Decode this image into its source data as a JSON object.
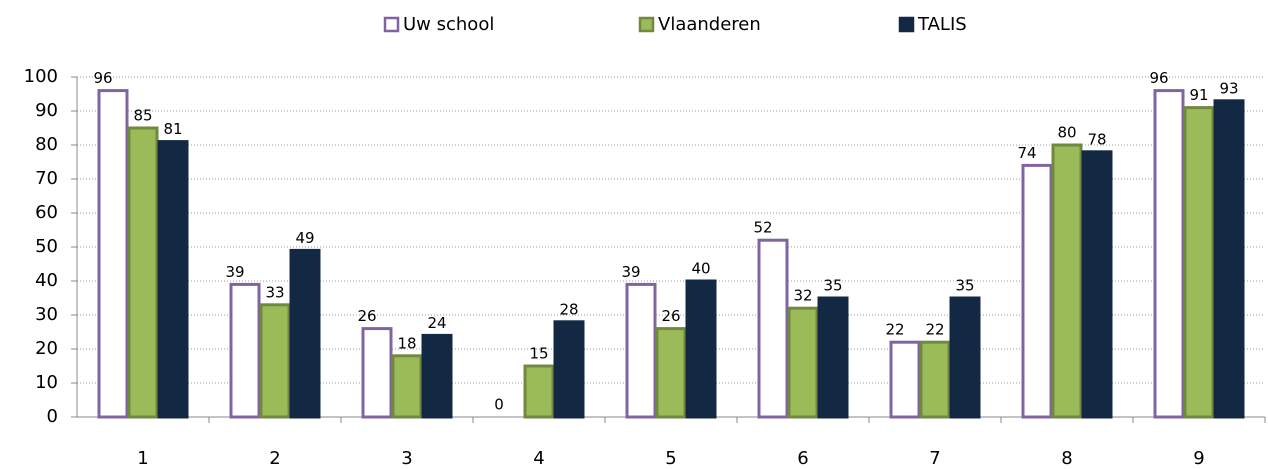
{
  "chart_data": {
    "type": "bar",
    "categories": [
      "1",
      "2",
      "3",
      "4",
      "5",
      "6",
      "7",
      "8",
      "9"
    ],
    "series": [
      {
        "name": "Uw school",
        "color": "#ffffff",
        "stroke": "#8064a2",
        "values": [
          96,
          39,
          26,
          0,
          39,
          52,
          22,
          74,
          96
        ]
      },
      {
        "name": "Vlaanderen",
        "color": "#9bbb59",
        "stroke": "#71893f",
        "values": [
          85,
          33,
          18,
          15,
          26,
          32,
          22,
          80,
          91
        ]
      },
      {
        "name": "TALIS",
        "color": "#132843",
        "stroke": "#132843",
        "values": [
          81,
          49,
          24,
          28,
          40,
          35,
          35,
          78,
          93
        ]
      }
    ],
    "ylim": [
      0,
      100
    ],
    "yticks": [
      0,
      10,
      20,
      30,
      40,
      50,
      60,
      70,
      80,
      90,
      100
    ],
    "grid": true,
    "legend": "top"
  }
}
